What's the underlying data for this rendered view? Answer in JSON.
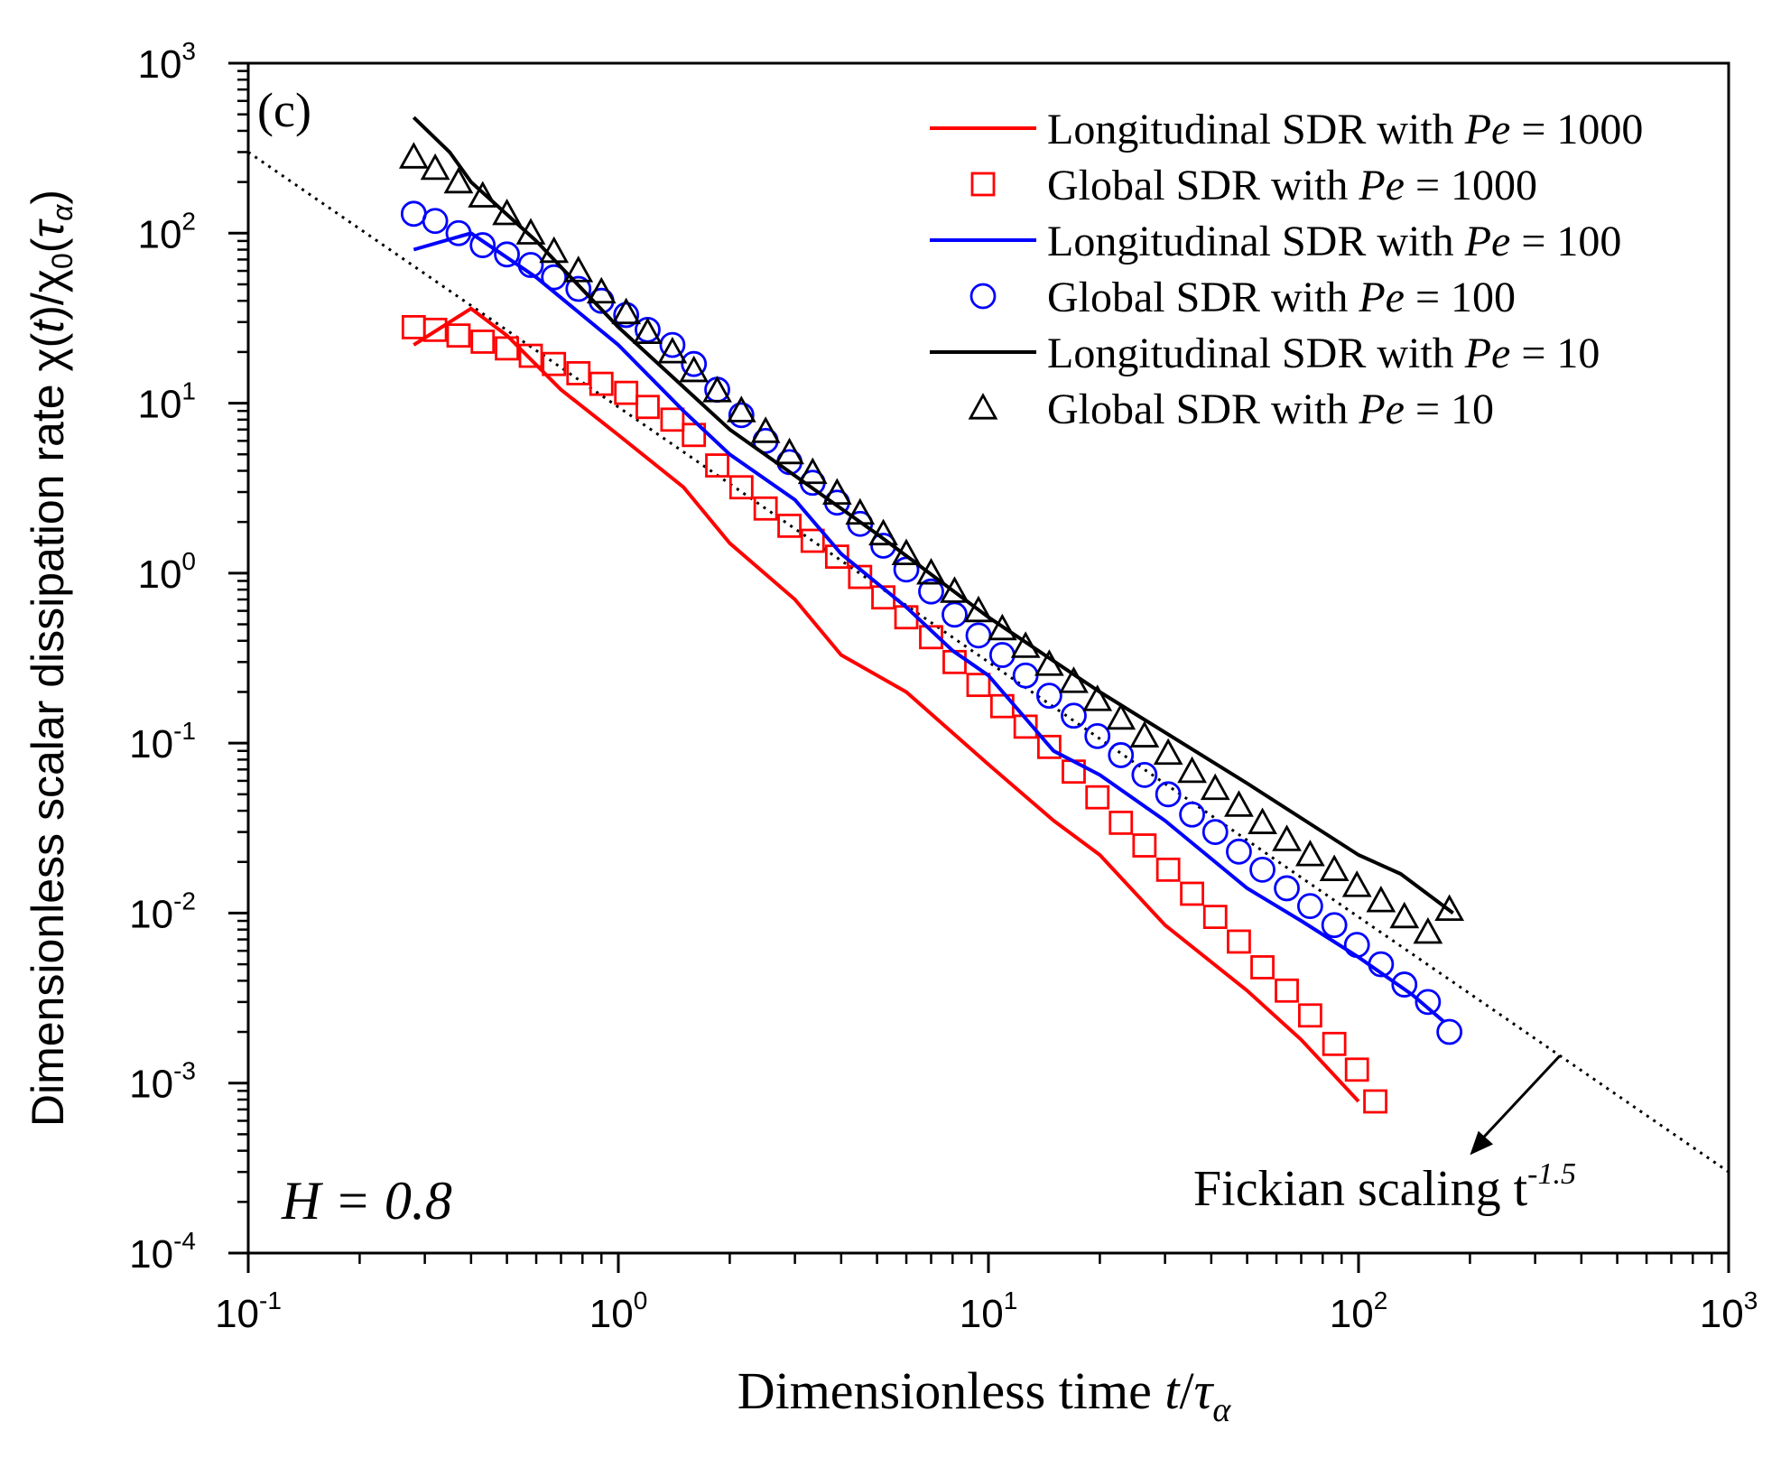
{
  "chart_data": {
    "type": "line",
    "panel_label": "(c)",
    "xlabel": "Dimensionless time t/τ_α",
    "ylabel": "Dimensionless scalar dissipation rate χ(t)/χ₀(τ_α)",
    "xscale": "log",
    "yscale": "log",
    "xlim": [
      0.1,
      1000
    ],
    "ylim": [
      0.0001,
      1000
    ],
    "x_ticks": [
      {
        "value": 0.1,
        "base": "10",
        "exp": "-1"
      },
      {
        "value": 1,
        "base": "10",
        "exp": "0"
      },
      {
        "value": 10,
        "base": "10",
        "exp": "1"
      },
      {
        "value": 100,
        "base": "10",
        "exp": "2"
      },
      {
        "value": 1000,
        "base": "10",
        "exp": "3"
      }
    ],
    "y_ticks": [
      {
        "value": 0.0001,
        "base": "10",
        "exp": "-4"
      },
      {
        "value": 0.001,
        "base": "10",
        "exp": "-3"
      },
      {
        "value": 0.01,
        "base": "10",
        "exp": "-2"
      },
      {
        "value": 0.1,
        "base": "10",
        "exp": "-1"
      },
      {
        "value": 1,
        "base": "10",
        "exp": "0"
      },
      {
        "value": 10,
        "base": "10",
        "exp": "1"
      },
      {
        "value": 100,
        "base": "10",
        "exp": "2"
      },
      {
        "value": 1000,
        "base": "10",
        "exp": "3"
      }
    ],
    "annotation_H": "H = 0.8",
    "fickian": {
      "label": "Fickian scaling t",
      "exponent_label": "-1.5",
      "exponent": -1.5,
      "x_range": [
        0.1,
        1000
      ],
      "y_at_x0": 300,
      "arrow_from_x": 350,
      "arrow_to_x": 200
    },
    "legend": {
      "location": "top-right"
    },
    "series": [
      {
        "name": "Longitudinal SDR with Pe = 1000",
        "pe": "1000",
        "style": "line",
        "color": "#ff0000",
        "x": [
          0.28,
          0.4,
          0.5,
          0.7,
          1.0,
          1.5,
          2.0,
          3.0,
          4.0,
          6.0,
          10.0,
          15.0,
          20.0,
          30.0,
          50.0,
          70.0,
          100.0
        ],
        "y": [
          22,
          36,
          25,
          12,
          6.5,
          3.2,
          1.5,
          0.7,
          0.33,
          0.2,
          0.075,
          0.035,
          0.022,
          0.0085,
          0.0035,
          0.0018,
          0.00078
        ]
      },
      {
        "name": "Global SDR with Pe = 1000",
        "pe": "1000",
        "style": "marker",
        "marker": "square",
        "color": "#ff0000",
        "x": [
          0.28,
          0.32,
          0.37,
          0.43,
          0.5,
          0.58,
          0.67,
          0.78,
          0.9,
          1.05,
          1.2,
          1.4,
          1.6,
          1.85,
          2.15,
          2.5,
          2.9,
          3.35,
          3.9,
          4.5,
          5.2,
          6.0,
          7.0,
          8.1,
          9.4,
          10.9,
          12.6,
          14.6,
          17,
          19.7,
          22.8,
          26.4,
          30.6,
          35.5,
          41,
          47.5,
          55,
          64,
          74,
          86,
          99,
          111
        ],
        "y": [
          28,
          27,
          25,
          23,
          21,
          19,
          17,
          15,
          13,
          11.5,
          9.5,
          8,
          6.5,
          4.3,
          3.2,
          2.4,
          1.9,
          1.55,
          1.25,
          0.95,
          0.72,
          0.55,
          0.42,
          0.3,
          0.22,
          0.165,
          0.125,
          0.095,
          0.068,
          0.048,
          0.034,
          0.025,
          0.018,
          0.013,
          0.0095,
          0.0068,
          0.0048,
          0.0035,
          0.0025,
          0.0017,
          0.0012,
          0.00078
        ]
      },
      {
        "name": "Longitudinal SDR with Pe = 100",
        "pe": "100",
        "style": "line",
        "color": "#0000ff",
        "x": [
          0.28,
          0.4,
          0.6,
          1.0,
          1.5,
          2.0,
          3.0,
          4.0,
          6.0,
          8.0,
          10.0,
          15.0,
          20.0,
          30.0,
          50.0,
          70.0,
          100.0,
          140.0,
          170.0
        ],
        "y": [
          80,
          100,
          55,
          22,
          9,
          5,
          2.7,
          1.3,
          0.63,
          0.35,
          0.25,
          0.09,
          0.065,
          0.035,
          0.014,
          0.009,
          0.0055,
          0.0033,
          0.0023
        ]
      },
      {
        "name": "Global SDR with Pe = 100",
        "pe": "100",
        "style": "marker",
        "marker": "circle",
        "color": "#0000ff",
        "x": [
          0.28,
          0.32,
          0.37,
          0.43,
          0.5,
          0.58,
          0.67,
          0.78,
          0.9,
          1.05,
          1.2,
          1.4,
          1.6,
          1.85,
          2.15,
          2.5,
          2.9,
          3.35,
          3.9,
          4.5,
          5.2,
          6.0,
          7.0,
          8.1,
          9.4,
          10.9,
          12.6,
          14.6,
          17,
          19.7,
          22.8,
          26.4,
          30.6,
          35.5,
          41,
          47.5,
          55,
          64,
          74,
          86,
          99,
          115,
          133,
          154,
          176
        ],
        "y": [
          130,
          118,
          100,
          85,
          75,
          65,
          55,
          47,
          40,
          33,
          27,
          22,
          17,
          12,
          8.5,
          6,
          4.5,
          3.4,
          2.6,
          1.95,
          1.45,
          1.05,
          0.78,
          0.57,
          0.43,
          0.33,
          0.25,
          0.19,
          0.145,
          0.11,
          0.085,
          0.065,
          0.05,
          0.038,
          0.03,
          0.023,
          0.018,
          0.014,
          0.011,
          0.0085,
          0.0065,
          0.005,
          0.0038,
          0.003,
          0.002
        ]
      },
      {
        "name": "Longitudinal SDR with Pe = 10",
        "pe": "10",
        "style": "line",
        "color": "#000000",
        "x": [
          0.28,
          0.35,
          0.4,
          0.6,
          1.0,
          2.0,
          5.0,
          10.0,
          20.0,
          50.0,
          100.0,
          130.0,
          180.0
        ],
        "y": [
          480,
          300,
          200,
          90,
          28,
          7,
          1.7,
          0.55,
          0.2,
          0.058,
          0.022,
          0.017,
          0.01
        ]
      },
      {
        "name": "Global SDR with Pe = 10",
        "pe": "10",
        "style": "marker",
        "marker": "triangle",
        "color": "#000000",
        "x": [
          0.28,
          0.32,
          0.37,
          0.43,
          0.5,
          0.58,
          0.67,
          0.78,
          0.9,
          1.05,
          1.2,
          1.4,
          1.6,
          1.85,
          2.15,
          2.5,
          2.9,
          3.35,
          3.9,
          4.5,
          5.2,
          6.0,
          7.0,
          8.1,
          9.4,
          10.9,
          12.6,
          14.6,
          17,
          19.7,
          22.8,
          26.4,
          30.6,
          35.5,
          41,
          47.5,
          55,
          64,
          74,
          86,
          99,
          115,
          133,
          154,
          176
        ],
        "y": [
          280,
          240,
          200,
          165,
          130,
          100,
          78,
          60,
          45,
          34,
          26,
          20,
          15.5,
          11.8,
          9,
          6.8,
          5.1,
          3.9,
          2.95,
          2.25,
          1.7,
          1.3,
          1.0,
          0.78,
          0.6,
          0.47,
          0.37,
          0.29,
          0.23,
          0.18,
          0.14,
          0.11,
          0.087,
          0.068,
          0.054,
          0.043,
          0.034,
          0.027,
          0.022,
          0.018,
          0.0145,
          0.0118,
          0.0095,
          0.0077,
          0.0105
        ]
      }
    ]
  }
}
